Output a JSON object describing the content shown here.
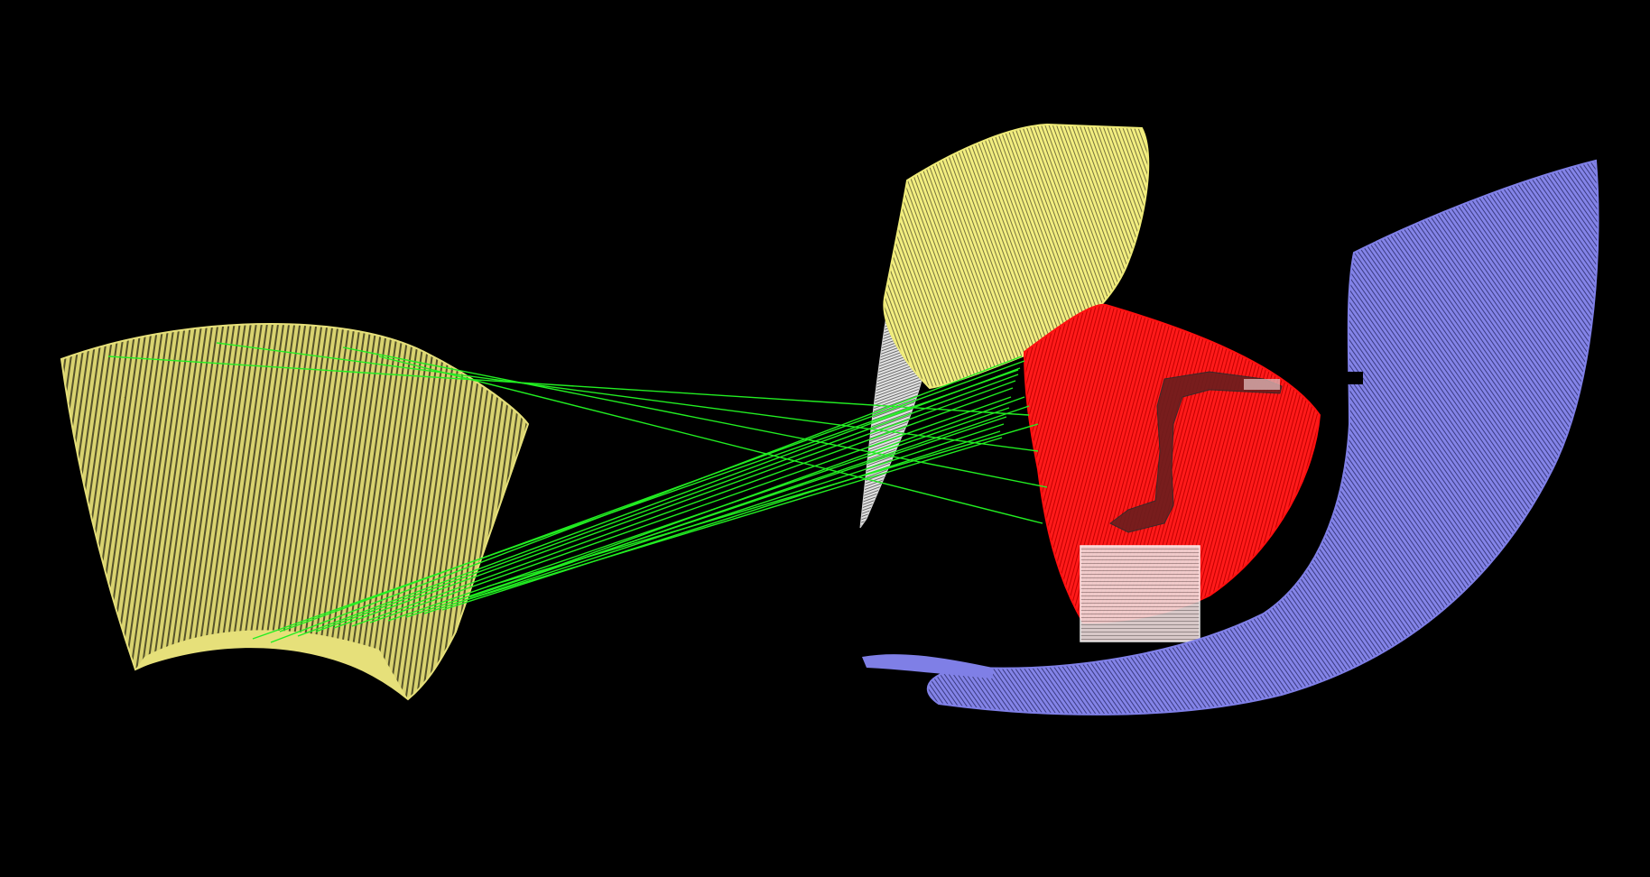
{
  "scene": {
    "background_color": "#000000",
    "point_clouds": [
      {
        "name": "source-yellow-cloud",
        "color": "#e6e07a"
      },
      {
        "name": "target-yellow-cloud",
        "color": "#eeea78"
      },
      {
        "name": "target-white-cloud",
        "color": "#d8d8d8"
      },
      {
        "name": "target-red-cloud",
        "color": "#ff1010"
      },
      {
        "name": "target-blue-cloud",
        "color": "#7f7fe6"
      },
      {
        "name": "robot-arm-model",
        "color": "#7a2020"
      },
      {
        "name": "pedestal-box",
        "color": "#e8d8d8"
      }
    ],
    "correspondence_lines": {
      "color": "#22ee22"
    }
  }
}
